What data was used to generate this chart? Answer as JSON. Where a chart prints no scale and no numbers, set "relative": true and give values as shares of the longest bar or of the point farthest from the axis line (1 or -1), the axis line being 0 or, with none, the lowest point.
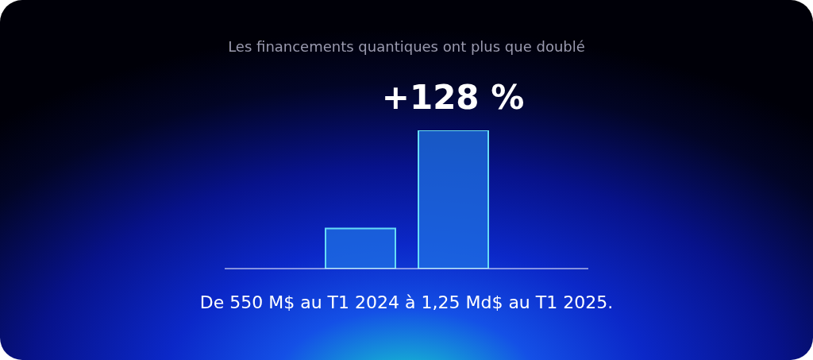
{
  "chart_data": {
    "type": "bar",
    "title": "Les financements quantiques ont plus que doublé",
    "categories": [
      null,
      null
    ],
    "values": [
      0.29,
      1
    ],
    "color": "#1f72e4",
    "relative": true,
    "annotations": [
      "+128 %",
      "De 550 M$ au T1 2024 à 1,25 Md$ au T1 2025."
    ]
  }
}
